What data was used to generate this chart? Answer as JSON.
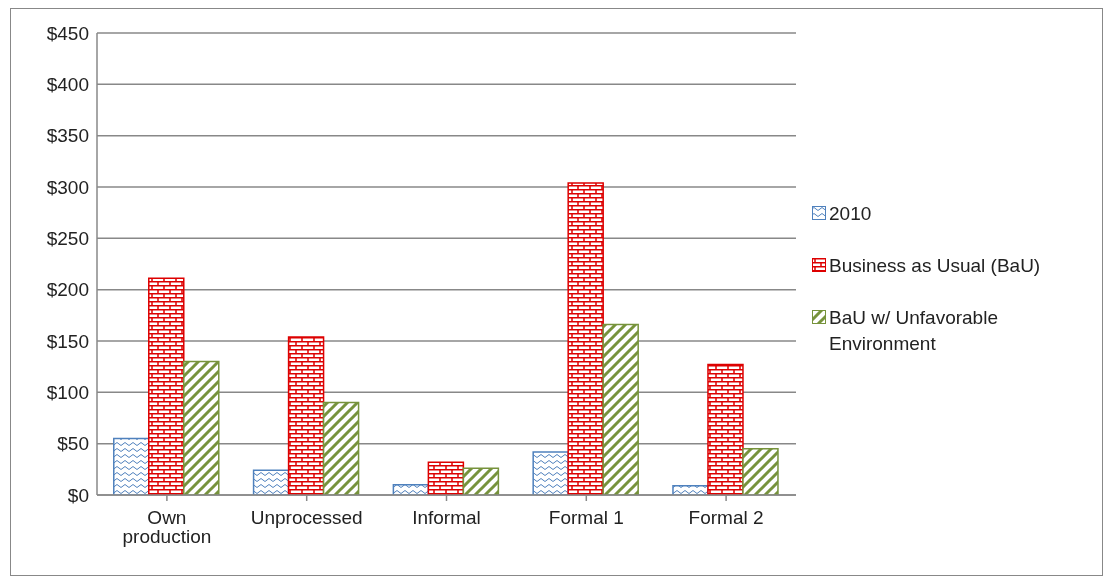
{
  "chart_data": {
    "type": "bar",
    "categories": [
      "Own production",
      "Unprocessed",
      "Informal",
      "Formal 1",
      "Formal 2"
    ],
    "series": [
      {
        "name": "2010",
        "color": "#4f81bd",
        "values": [
          55,
          24,
          10,
          42,
          9
        ]
      },
      {
        "name": "Business as Usual (BaU)",
        "color": "#dd0000",
        "values": [
          211,
          154,
          32,
          304,
          127
        ]
      },
      {
        "name": "BaU w/ Unfavorable Environment",
        "color": "#77933c",
        "values": [
          130,
          90,
          26,
          166,
          45
        ]
      }
    ],
    "ylim": [
      0,
      450
    ],
    "yticks": [
      {
        "value": 0,
        "label": "$0"
      },
      {
        "value": 50,
        "label": "$50"
      },
      {
        "value": 100,
        "label": "$100"
      },
      {
        "value": 150,
        "label": "$150"
      },
      {
        "value": 200,
        "label": "$200"
      },
      {
        "value": 250,
        "label": "$250"
      },
      {
        "value": 300,
        "label": "$300"
      },
      {
        "value": 350,
        "label": "$350"
      },
      {
        "value": 400,
        "label": "$400"
      },
      {
        "value": 450,
        "label": "$450"
      }
    ],
    "grid": "y",
    "legend": "right"
  }
}
